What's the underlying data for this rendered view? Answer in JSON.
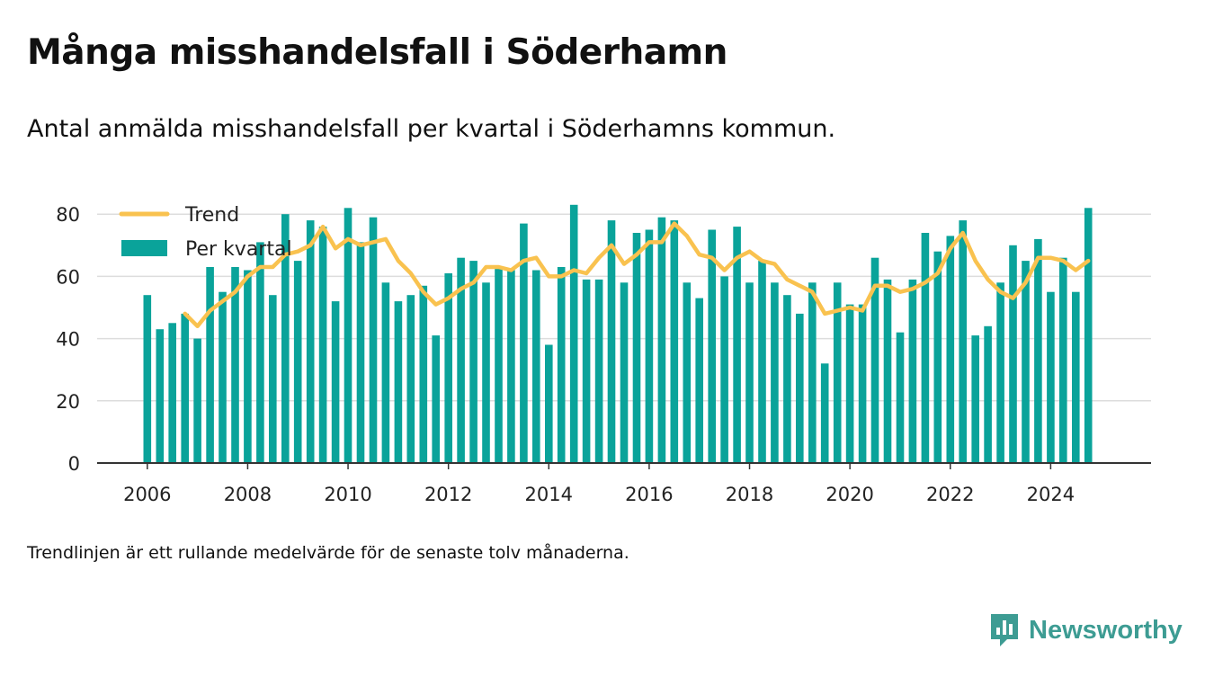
{
  "header": {
    "title": "Många misshandelsfall i Söderhamn",
    "subtitle": "Antal anmälda misshandelsfall per kvartal i Söderhamns kommun."
  },
  "footer": {
    "note": "Trendlinjen är ett rullande medelvärde för de senaste tolv månaderna.",
    "brand": "Newsworthy"
  },
  "colors": {
    "bar": "#0aa39a",
    "trend": "#f9c24f",
    "grid": "#dddddd",
    "axis": "#333333",
    "brand": "#3d9c93"
  },
  "icons": {
    "brand_logo": "newsworthy-logo-icon"
  },
  "chart_data": {
    "type": "bar",
    "title": "Många misshandelsfall i Söderhamn",
    "xlabel": "",
    "ylabel": "",
    "ylim": [
      0,
      87
    ],
    "yticks": [
      0,
      20,
      40,
      60,
      80
    ],
    "xticks": [
      "2006",
      "2008",
      "2010",
      "2012",
      "2014",
      "2016",
      "2018",
      "2020",
      "2022",
      "2024"
    ],
    "xlim": [
      "2005",
      "2026"
    ],
    "grid": true,
    "legend_position": "top-left",
    "categories": [
      "2006 Q1",
      "2006 Q2",
      "2006 Q3",
      "2006 Q4",
      "2007 Q1",
      "2007 Q2",
      "2007 Q3",
      "2007 Q4",
      "2008 Q1",
      "2008 Q2",
      "2008 Q3",
      "2008 Q4",
      "2009 Q1",
      "2009 Q2",
      "2009 Q3",
      "2009 Q4",
      "2010 Q1",
      "2010 Q2",
      "2010 Q3",
      "2010 Q4",
      "2011 Q1",
      "2011 Q2",
      "2011 Q3",
      "2011 Q4",
      "2012 Q1",
      "2012 Q2",
      "2012 Q3",
      "2012 Q4",
      "2013 Q1",
      "2013 Q2",
      "2013 Q3",
      "2013 Q4",
      "2014 Q1",
      "2014 Q2",
      "2014 Q3",
      "2014 Q4",
      "2015 Q1",
      "2015 Q2",
      "2015 Q3",
      "2015 Q4",
      "2016 Q1",
      "2016 Q2",
      "2016 Q3",
      "2016 Q4",
      "2017 Q1",
      "2017 Q2",
      "2017 Q3",
      "2017 Q4",
      "2018 Q1",
      "2018 Q2",
      "2018 Q3",
      "2018 Q4",
      "2019 Q1",
      "2019 Q2",
      "2019 Q3",
      "2019 Q4",
      "2020 Q1",
      "2020 Q2",
      "2020 Q3",
      "2020 Q4",
      "2021 Q1",
      "2021 Q2",
      "2021 Q3",
      "2021 Q4",
      "2022 Q1",
      "2022 Q2",
      "2022 Q3",
      "2022 Q4",
      "2023 Q1",
      "2023 Q2",
      "2023 Q3",
      "2023 Q4",
      "2024 Q1",
      "2024 Q2",
      "2024 Q3",
      "2024 Q4"
    ],
    "series": [
      {
        "name": "Per kvartal",
        "type": "bar",
        "values": [
          54,
          43,
          45,
          48,
          40,
          63,
          55,
          63,
          62,
          71,
          54,
          80,
          65,
          78,
          76,
          52,
          82,
          71,
          79,
          58,
          52,
          54,
          57,
          41,
          61,
          66,
          65,
          58,
          63,
          62,
          77,
          62,
          38,
          63,
          83,
          59,
          59,
          78,
          58,
          74,
          75,
          79,
          78,
          58,
          53,
          75,
          60,
          76,
          58,
          65,
          58,
          54,
          48,
          58,
          32,
          58,
          51,
          51,
          66,
          59,
          42,
          59,
          74,
          68,
          73,
          78,
          41,
          44,
          58,
          70,
          65,
          72,
          55,
          66,
          55,
          82
        ]
      },
      {
        "name": "Trend",
        "type": "line",
        "values": [
          null,
          null,
          null,
          48,
          44,
          49,
          52,
          55,
          60,
          63,
          63,
          67,
          68,
          70,
          76,
          69,
          72,
          70,
          71,
          72,
          65,
          61,
          55,
          51,
          53,
          56,
          58,
          63,
          63,
          62,
          65,
          66,
          60,
          60,
          62,
          61,
          66,
          70,
          64,
          67,
          71,
          71,
          77,
          73,
          67,
          66,
          62,
          66,
          68,
          65,
          64,
          59,
          57,
          55,
          48,
          49,
          50,
          49,
          57,
          57,
          55,
          56,
          58,
          61,
          69,
          74,
          65,
          59,
          55,
          53,
          58,
          66,
          66,
          65,
          62,
          65
        ]
      }
    ]
  }
}
